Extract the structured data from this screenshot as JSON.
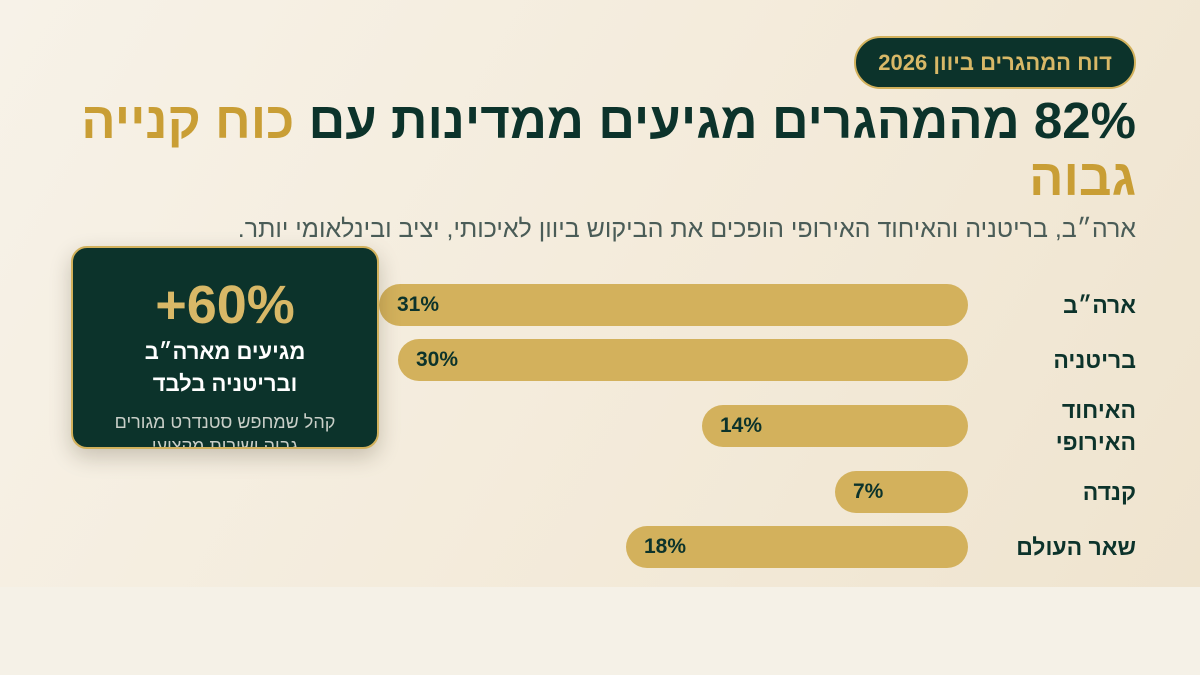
{
  "badge": "דוח המהגרים ביוון 2026",
  "headline": {
    "main": "82% מהמהגרים מגיעים ממדינות עם",
    "accent": "כוח קנייה גבוה"
  },
  "subtitle": "ארה״ב, בריטניה והאיחוד האירופי הופכים את הביקוש ביוון לאיכותי, יציב ובינלאומי יותר.",
  "card": {
    "value": "+60%",
    "line1": "מגיעים מארה״ב",
    "line2": "ובריטניה בלבד",
    "note": "קהל שמחפש סטנדרט מגורים גבוה ושירות מקצועי"
  },
  "colors": {
    "dark": "#0c332b",
    "gold": "#d3b15c",
    "accent_text": "#c99e35"
  },
  "chart_data": {
    "type": "bar",
    "orientation": "horizontal",
    "categories": [
      "ארה״ב",
      "בריטניה",
      "האיחוד האירופי",
      "קנדה",
      "שאר העולם"
    ],
    "values": [
      31,
      30,
      14,
      7,
      18
    ],
    "value_labels": [
      "31%",
      "30%",
      "14%",
      "7%",
      "18%"
    ],
    "unit": "%",
    "grid": false,
    "legend": "none"
  }
}
